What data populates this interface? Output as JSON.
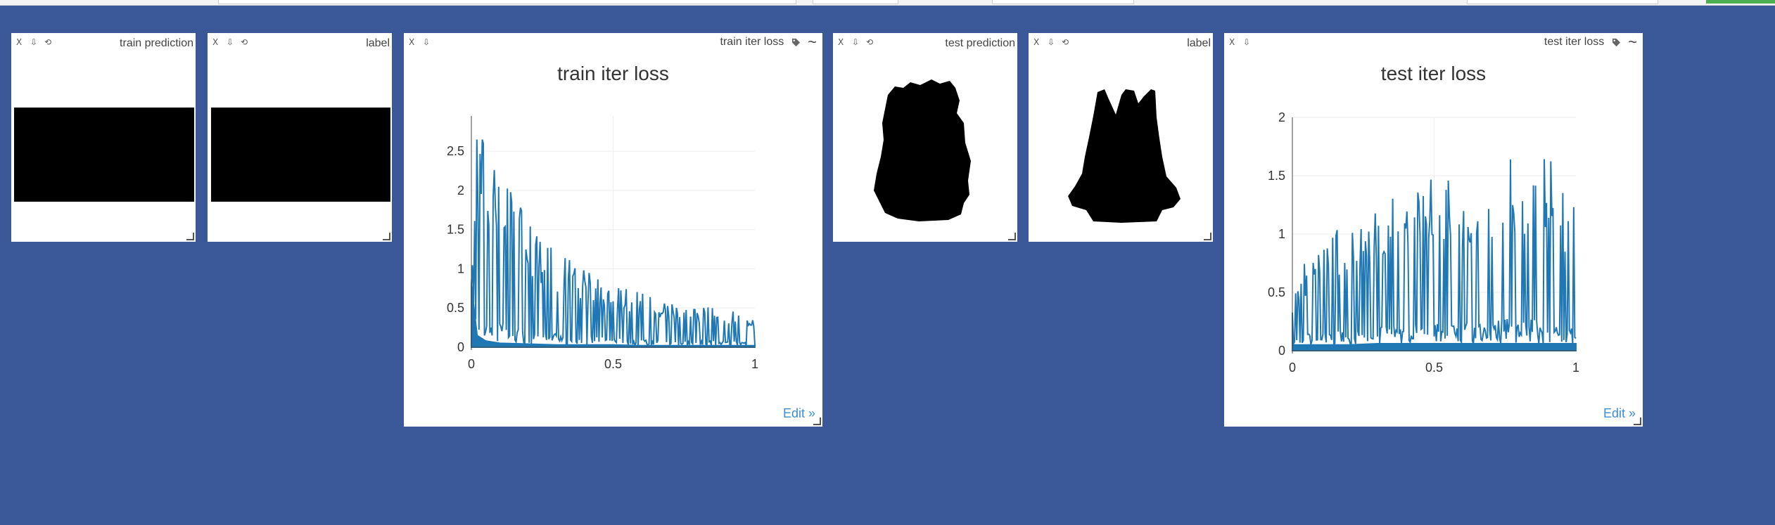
{
  "panes": {
    "train_prediction": {
      "title": "train prediction",
      "close": "X",
      "download": "⇩",
      "reset": "⟲"
    },
    "train_label": {
      "title": "label",
      "close": "X",
      "download": "⇩",
      "reset": "⟲"
    },
    "test_prediction": {
      "title": "test prediction",
      "close": "X",
      "download": "⇩",
      "reset": "⟲"
    },
    "test_label": {
      "title": "label",
      "close": "X",
      "download": "⇩",
      "reset": "⟲"
    },
    "train_loss": {
      "title": "train iter loss",
      "close": "X",
      "download": "⇩",
      "icons": [
        "tag-icon",
        "smoothing-icon"
      ],
      "tilde": "~",
      "edit": "Edit »"
    },
    "test_loss": {
      "title": "test iter loss",
      "close": "X",
      "download": "⇩",
      "icons": [
        "tag-icon",
        "smoothing-icon"
      ],
      "tilde": "~",
      "edit": "Edit »"
    }
  },
  "colors": {
    "background": "#3b5998",
    "series": "#1f77b4",
    "link": "#3b8ed8",
    "status_green": "#4caf50"
  },
  "chart_data": [
    {
      "type": "line",
      "title": "train iter loss",
      "xlabel": "",
      "ylabel": "",
      "xlim": [
        0,
        1
      ],
      "ylim": [
        0,
        2.95
      ],
      "xticks": [
        "0",
        "0.5",
        "1"
      ],
      "yticks": [
        "0",
        "0.5",
        "1",
        "1.5",
        "2",
        "2.5"
      ],
      "grid": true,
      "series": [
        {
          "x": [
            0,
            0.02,
            0.05,
            0.1,
            0.2,
            0.3,
            0.4,
            0.5,
            0.6,
            0.7,
            0.8,
            0.9,
            1.0
          ],
          "envelope": [
            0.8,
            2.8,
            2.8,
            2.3,
            1.6,
            1.25,
            0.98,
            0.82,
            0.7,
            0.6,
            0.53,
            0.49,
            0.45
          ],
          "baseline": [
            0.8,
            0.15,
            0.08,
            0.05,
            0.04,
            0.03,
            0.03,
            0.03,
            0.02,
            0.02,
            0.02,
            0.02,
            0.02
          ]
        }
      ]
    },
    {
      "type": "line",
      "title": "test iter loss",
      "xlabel": "",
      "ylabel": "",
      "xlim": [
        0,
        1
      ],
      "ylim": [
        0,
        2
      ],
      "xticks": [
        "0",
        "0.5",
        "1"
      ],
      "yticks": [
        "0",
        "0.5",
        "1",
        "1.5",
        "2"
      ],
      "grid": true,
      "series": [
        {
          "x": [
            0,
            0.05,
            0.1,
            0.2,
            0.3,
            0.4,
            0.5,
            0.6,
            0.7,
            0.76,
            0.8,
            0.88,
            0.9,
            1.0
          ],
          "envelope": [
            0.55,
            0.8,
            0.95,
            1.1,
            1.25,
            1.4,
            1.5,
            1.55,
            1.6,
            1.85,
            1.65,
            1.9,
            1.7,
            1.35
          ],
          "baseline": [
            0.05,
            0.05,
            0.05,
            0.05,
            0.06,
            0.06,
            0.06,
            0.06,
            0.06,
            0.06,
            0.06,
            0.06,
            0.06,
            0.06
          ]
        }
      ]
    }
  ]
}
